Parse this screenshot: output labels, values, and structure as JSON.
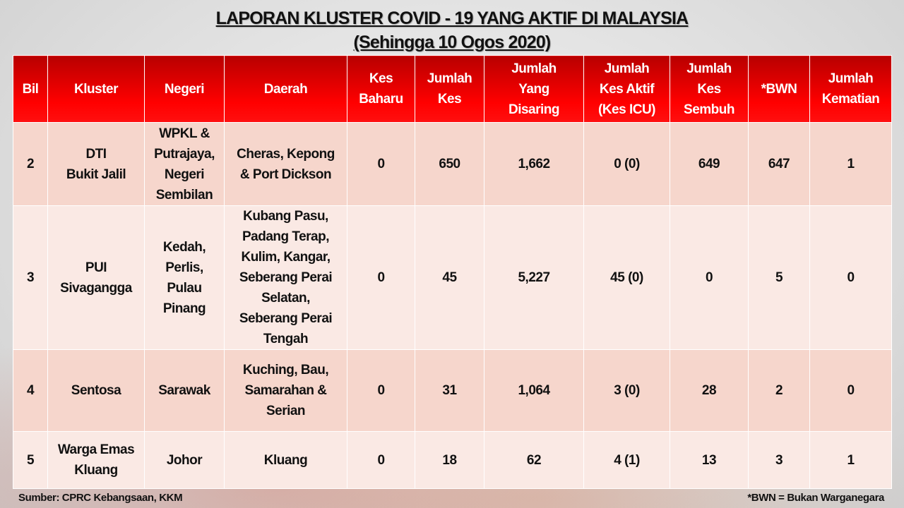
{
  "title": "LAPORAN KLUSTER COVID - 19 YANG AKTIF DI MALAYSIA",
  "subtitle": "(Sehingga 10 Ogos 2020)",
  "table": {
    "headers": [
      "Bil",
      "Kluster",
      "Negeri",
      "Daerah",
      "Kes\nBaharu",
      "Jumlah\nKes",
      "Jumlah\nYang\nDisaring",
      "Jumlah\nKes Aktif\n(Kes ICU)",
      "Jumlah\nKes\nSembuh",
      "*BWN",
      "Jumlah\nKematian"
    ],
    "rows": [
      [
        "2",
        "DTI\nBukit Jalil",
        "WPKL &\nPutrajaya,\nNegeri\nSembilan",
        "Cheras, Kepong\n& Port Dickson",
        "0",
        "650",
        "1,662",
        "0 (0)",
        "649",
        "647",
        "1"
      ],
      [
        "3",
        "PUI\nSivagangga",
        "Kedah,\nPerlis,\nPulau\nPinang",
        "Kubang Pasu,\nPadang Terap,\nKulim, Kangar,\nSeberang Perai\nSelatan,\nSeberang Perai\nTengah",
        "0",
        "45",
        "5,227",
        "45 (0)",
        "0",
        "5",
        "0"
      ],
      [
        "4",
        "Sentosa",
        "Sarawak",
        "Kuching, Bau,\nSamarahan &\nSerian",
        "0",
        "31",
        "1,064",
        "3 (0)",
        "28",
        "2",
        "0"
      ],
      [
        "5",
        "Warga Emas\nKluang",
        "Johor",
        "Kluang",
        "0",
        "18",
        "62",
        "4 (1)",
        "13",
        "3",
        "1"
      ]
    ]
  },
  "footer": {
    "source": "Sumber: CPRC Kebangsaan, KKM",
    "note": "*BWN = Bukan Warganegara"
  },
  "colors": {
    "header_red": "#ff0000",
    "row_dark": "#f6d6cc",
    "row_light": "#fae9e4"
  }
}
